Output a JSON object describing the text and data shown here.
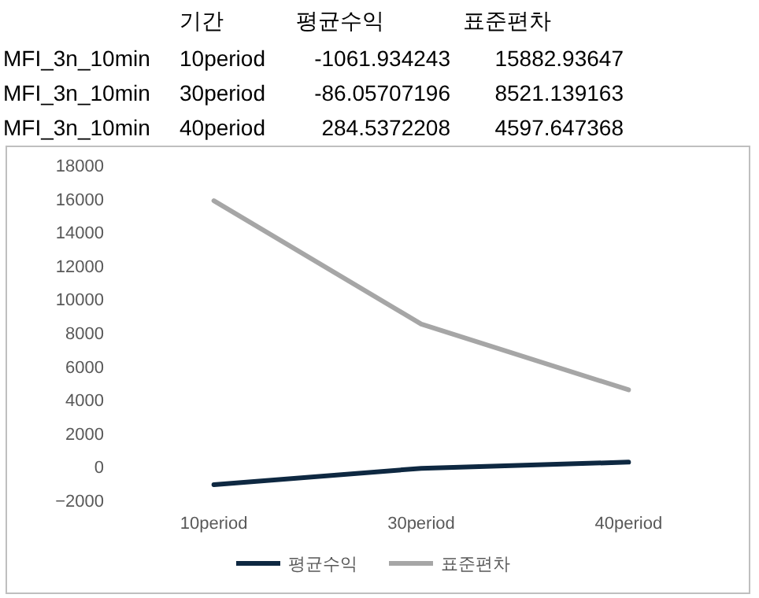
{
  "chart_data": {
    "type": "line",
    "categories": [
      "10period",
      "30period",
      "40period"
    ],
    "series": [
      {
        "name": "평균수익",
        "color": "#0e2841",
        "values": [
          -1061.934243,
          -86.05707196,
          284.5372208
        ]
      },
      {
        "name": "표준편차",
        "color": "#a6a6a6",
        "values": [
          15882.93647,
          8521.139163,
          4597.647368
        ]
      }
    ],
    "ylim": [
      -2000,
      18000
    ],
    "yticks": [
      -2000,
      0,
      2000,
      4000,
      6000,
      8000,
      10000,
      12000,
      14000,
      16000,
      18000
    ],
    "grid": false,
    "legend": "bottom",
    "marker": "none",
    "line_style": "solid",
    "annotations": [
      "기간",
      "MFI_3n_10min",
      "MFI_3n_10min",
      "MFI_3n_10min",
      "-1061.934243",
      "15882.93647",
      "-86.05707196",
      "8521.139163",
      "284.5372208",
      "4597.647368"
    ]
  }
}
